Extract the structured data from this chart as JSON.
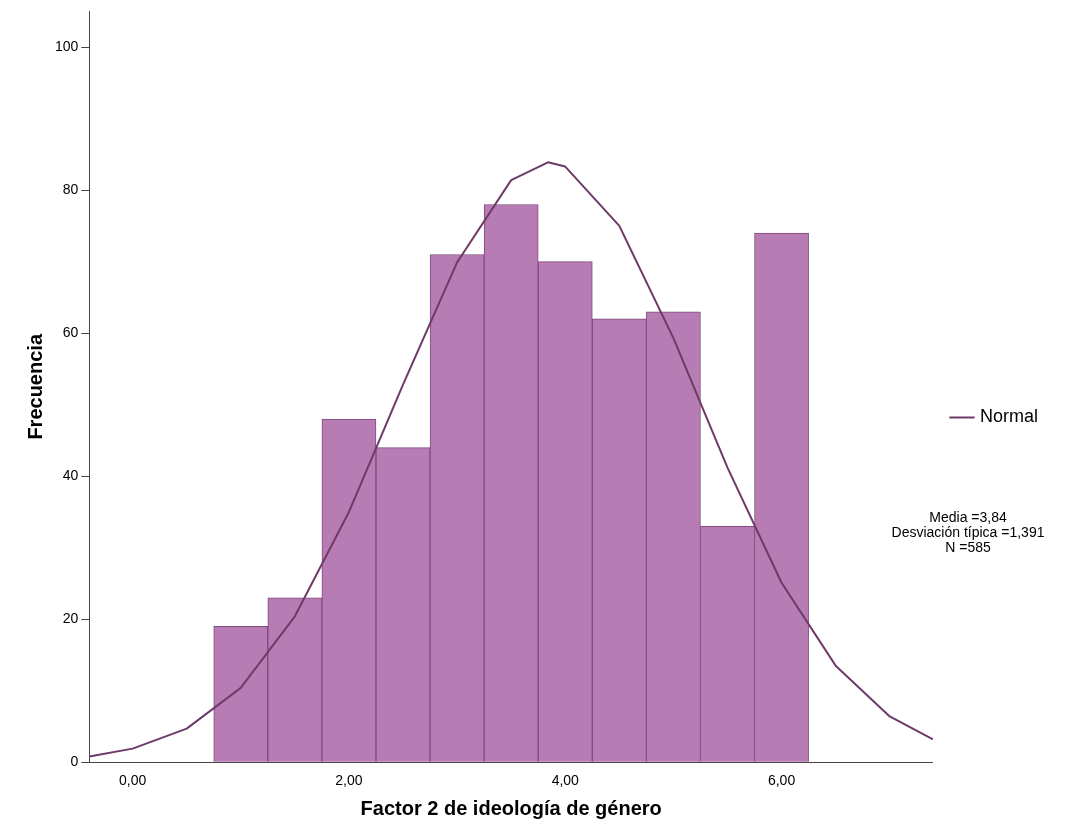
{
  "chart_data": {
    "type": "histogram",
    "xlabel": "Factor 2 de ideología de género",
    "ylabel": "Frecuencia",
    "bins": [
      0.75,
      1.25,
      1.75,
      2.25,
      2.75,
      3.25,
      3.75,
      4.25,
      4.75,
      5.25,
      5.75,
      6.25
    ],
    "values": [
      19,
      23,
      48,
      44,
      71,
      78,
      70,
      62,
      63,
      33,
      74
    ],
    "color": "#b87cb5",
    "series": [
      {
        "name": "Normal",
        "type": "line",
        "color": "#6e3a68",
        "x": [
          -0.4,
          0,
          0.5,
          1,
          1.5,
          2,
          2.5,
          3,
          3.5,
          3.84,
          4,
          4.5,
          5,
          5.5,
          6,
          6.5,
          7,
          7.4
        ],
        "values": [
          0.8,
          1.9,
          4.7,
          10.4,
          20.4,
          35,
          52.8,
          69.9,
          81.4,
          83.9,
          83.3,
          75,
          59.3,
          41.2,
          25.1,
          13.5,
          6.4,
          3.2
        ]
      }
    ],
    "xlim": [
      -0.4,
      7.4
    ],
    "xticks": [
      {
        "value": 0,
        "label": "0,00"
      },
      {
        "value": 2,
        "label": "2,00"
      },
      {
        "value": 4,
        "label": "4,00"
      },
      {
        "value": 6,
        "label": "6,00"
      }
    ],
    "ylim": [
      0,
      105
    ],
    "yticks": [
      0,
      20,
      40,
      60,
      80,
      100
    ],
    "legend": "right",
    "annotations": [
      "Media =3,84",
      "Desviación típica =1,391",
      "N =585"
    ]
  }
}
